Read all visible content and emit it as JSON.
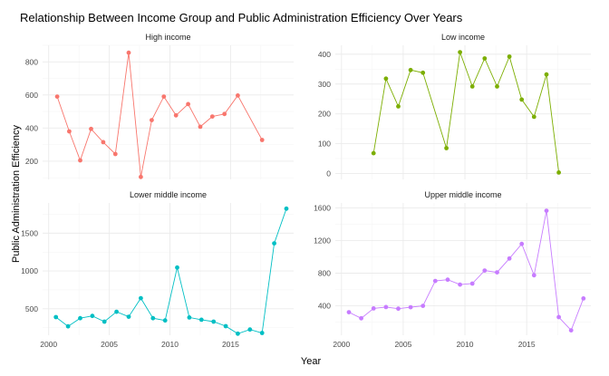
{
  "chart_data": {
    "type": "line",
    "title": "Relationship Between Income Group and Public Administration Efficiency Over Years",
    "xlabel": "Year",
    "ylabel": "Public Administration Efficiency",
    "facet_layout": "2x2",
    "x_ticks": [
      2000,
      2005,
      2010,
      2015
    ],
    "xlim": [
      1999.5,
      2020.2
    ],
    "grid": true,
    "panels": [
      {
        "name": "High income",
        "color": "#F8766D",
        "ylim": [
          90,
          900
        ],
        "y_ticks": [
          200,
          400,
          600,
          800
        ],
        "points": [
          [
            2000.7,
            590
          ],
          [
            2001.7,
            380
          ],
          [
            2002.6,
            205
          ],
          [
            2003.5,
            395
          ],
          [
            2004.5,
            315
          ],
          [
            2005.5,
            243
          ],
          [
            2006.6,
            855
          ],
          [
            2007.6,
            105
          ],
          [
            2008.5,
            448
          ],
          [
            2009.5,
            590
          ],
          [
            2010.5,
            477
          ],
          [
            2011.5,
            545
          ],
          [
            2012.5,
            408
          ],
          [
            2013.5,
            470
          ],
          [
            2014.5,
            485
          ],
          [
            2015.6,
            597
          ],
          [
            2017.6,
            328
          ]
        ]
      },
      {
        "name": "Low income",
        "color": "#7CAE00",
        "ylim": [
          -20,
          430
        ],
        "y_ticks": [
          0,
          100,
          200,
          300,
          400
        ],
        "points": [
          [
            2002.6,
            68
          ],
          [
            2003.6,
            318
          ],
          [
            2004.6,
            225
          ],
          [
            2005.6,
            347
          ],
          [
            2006.6,
            338
          ],
          [
            2008.5,
            85
          ],
          [
            2009.6,
            407
          ],
          [
            2010.6,
            292
          ],
          [
            2011.6,
            386
          ],
          [
            2012.6,
            292
          ],
          [
            2013.6,
            392
          ],
          [
            2014.6,
            248
          ],
          [
            2015.6,
            190
          ],
          [
            2016.6,
            332
          ],
          [
            2017.6,
            3
          ]
        ]
      },
      {
        "name": "Lower middle income",
        "color": "#00BFC4",
        "ylim": [
          150,
          1900
        ],
        "y_ticks": [
          500,
          1000,
          1500
        ],
        "points": [
          [
            2000.6,
            390
          ],
          [
            2001.6,
            268
          ],
          [
            2002.6,
            375
          ],
          [
            2003.6,
            405
          ],
          [
            2004.6,
            330
          ],
          [
            2005.6,
            460
          ],
          [
            2006.6,
            395
          ],
          [
            2007.6,
            640
          ],
          [
            2008.6,
            375
          ],
          [
            2009.6,
            345
          ],
          [
            2010.6,
            1045
          ],
          [
            2011.6,
            385
          ],
          [
            2012.6,
            355
          ],
          [
            2013.6,
            330
          ],
          [
            2014.6,
            270
          ],
          [
            2015.6,
            170
          ],
          [
            2016.6,
            225
          ],
          [
            2017.6,
            180
          ],
          [
            2018.6,
            1365
          ],
          [
            2019.6,
            1825
          ]
        ]
      },
      {
        "name": "Upper middle income",
        "color": "#C77CFF",
        "ylim": [
          40,
          1660
        ],
        "y_ticks": [
          400,
          800,
          1200,
          1600
        ],
        "points": [
          [
            2000.6,
            322
          ],
          [
            2001.6,
            248
          ],
          [
            2002.6,
            368
          ],
          [
            2003.6,
            385
          ],
          [
            2004.6,
            365
          ],
          [
            2005.6,
            383
          ],
          [
            2006.6,
            400
          ],
          [
            2007.6,
            705
          ],
          [
            2008.6,
            720
          ],
          [
            2009.6,
            660
          ],
          [
            2010.6,
            672
          ],
          [
            2011.6,
            832
          ],
          [
            2012.6,
            810
          ],
          [
            2013.6,
            980
          ],
          [
            2014.6,
            1158
          ],
          [
            2015.6,
            775
          ],
          [
            2016.6,
            1565
          ],
          [
            2017.6,
            262
          ],
          [
            2018.6,
            100
          ],
          [
            2019.6,
            490
          ]
        ]
      }
    ]
  }
}
